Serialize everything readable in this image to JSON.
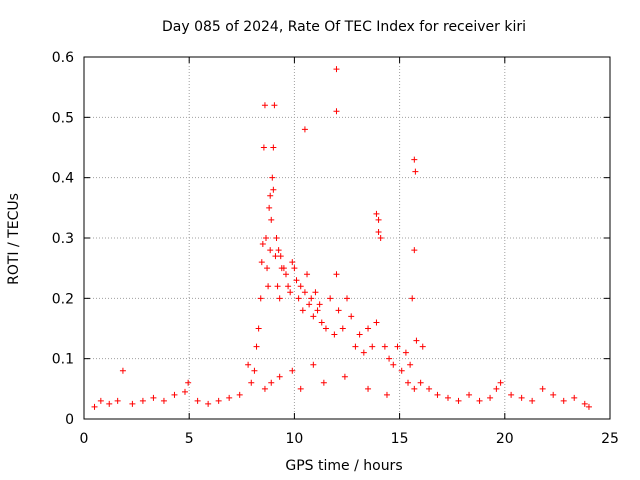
{
  "chart_data": {
    "type": "scatter",
    "title": "Day 085 of 2024, Rate Of TEC Index for receiver kiri",
    "xlabel": "GPS time / hours",
    "ylabel": "ROTI / TECUs",
    "xlim": [
      0,
      25
    ],
    "ylim": [
      0,
      0.6
    ],
    "xticks": [
      0,
      5,
      10,
      15,
      20,
      25
    ],
    "yticks": [
      0,
      0.1,
      0.2,
      0.3,
      0.4,
      0.5,
      0.6
    ],
    "grid": true,
    "marker": "+",
    "colors": {
      "series": "#ff0000",
      "grid": "#a0a0a0",
      "axis": "#000000"
    },
    "series": [
      {
        "name": "ROTI",
        "x": [
          0.5,
          0.8,
          1.2,
          1.6,
          1.85,
          2.3,
          2.8,
          3.3,
          3.8,
          4.3,
          4.8,
          4.95,
          5.4,
          5.9,
          6.4,
          6.9,
          7.4,
          7.8,
          7.95,
          8.1,
          8.2,
          8.3,
          8.4,
          8.45,
          8.5,
          8.55,
          8.6,
          8.65,
          8.7,
          8.75,
          8.8,
          8.85,
          8.9,
          8.95,
          9.0,
          9.05,
          9.1,
          9.15,
          9.2,
          9.25,
          9.3,
          9.35,
          9.4,
          9.5,
          9.6,
          9.7,
          9.8,
          9.9,
          10.0,
          10.1,
          10.2,
          10.3,
          10.4,
          10.5,
          10.6,
          10.7,
          10.8,
          10.9,
          11.0,
          11.1,
          11.2,
          11.3,
          11.5,
          11.7,
          11.9,
          12.0,
          12.1,
          12.3,
          12.5,
          12.7,
          12.9,
          13.1,
          13.3,
          13.5,
          13.7,
          13.9,
          14.0,
          14.1,
          14.3,
          14.5,
          14.7,
          14.9,
          15.1,
          15.3,
          15.5,
          15.6,
          15.7,
          15.8,
          16.0,
          16.4,
          16.8,
          17.3,
          17.8,
          18.3,
          18.8,
          19.3,
          19.6,
          19.8,
          20.3,
          20.8,
          21.3,
          21.8,
          22.3,
          22.8,
          23.3,
          23.8,
          24.0,
          8.6,
          8.9,
          9.3,
          9.9,
          10.3,
          10.9,
          11.4,
          12.4,
          13.5,
          14.4,
          15.4,
          15.7,
          12.0,
          12.0,
          10.5,
          13.9,
          14.0,
          15.7,
          15.75,
          16.1,
          9.0,
          8.85
        ],
        "y": [
          0.02,
          0.03,
          0.025,
          0.03,
          0.08,
          0.025,
          0.03,
          0.035,
          0.03,
          0.04,
          0.045,
          0.06,
          0.03,
          0.025,
          0.03,
          0.035,
          0.04,
          0.09,
          0.06,
          0.08,
          0.12,
          0.15,
          0.2,
          0.26,
          0.29,
          0.45,
          0.52,
          0.3,
          0.25,
          0.22,
          0.35,
          0.28,
          0.33,
          0.4,
          0.38,
          0.52,
          0.27,
          0.3,
          0.22,
          0.28,
          0.2,
          0.27,
          0.25,
          0.25,
          0.24,
          0.22,
          0.21,
          0.26,
          0.25,
          0.23,
          0.2,
          0.22,
          0.18,
          0.21,
          0.24,
          0.19,
          0.2,
          0.17,
          0.21,
          0.18,
          0.19,
          0.16,
          0.15,
          0.2,
          0.14,
          0.24,
          0.18,
          0.15,
          0.2,
          0.17,
          0.12,
          0.14,
          0.11,
          0.15,
          0.12,
          0.16,
          0.33,
          0.3,
          0.12,
          0.1,
          0.09,
          0.12,
          0.08,
          0.11,
          0.09,
          0.2,
          0.28,
          0.13,
          0.06,
          0.05,
          0.04,
          0.035,
          0.03,
          0.04,
          0.03,
          0.035,
          0.05,
          0.06,
          0.04,
          0.035,
          0.03,
          0.05,
          0.04,
          0.03,
          0.035,
          0.025,
          0.02,
          0.05,
          0.06,
          0.07,
          0.08,
          0.05,
          0.09,
          0.06,
          0.07,
          0.05,
          0.04,
          0.06,
          0.05,
          0.58,
          0.51,
          0.48,
          0.34,
          0.31,
          0.43,
          0.41,
          0.12,
          0.45,
          0.37
        ]
      }
    ]
  }
}
